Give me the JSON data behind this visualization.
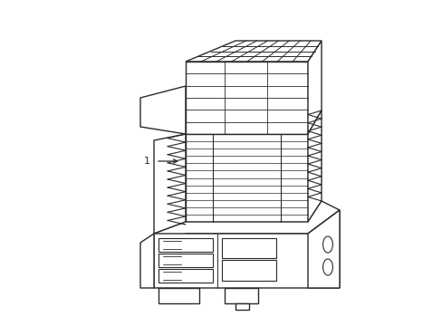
{
  "background_color": "#ffffff",
  "line_color": "#2a2a2a",
  "line_width": 1.0,
  "label_text": "1",
  "figsize": [
    4.89,
    3.6
  ],
  "dpi": 100
}
